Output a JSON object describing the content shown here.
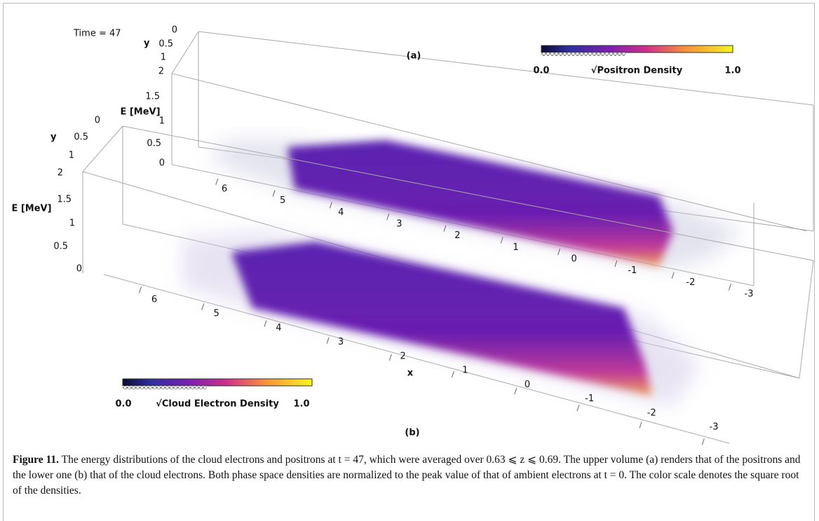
{
  "time_label": "Time = 47",
  "panels": [
    {
      "label": "(a)",
      "colorbar": {
        "min": "0.0",
        "title": "√Positron Density",
        "max": "1.0"
      },
      "y_axis": {
        "label": "y",
        "ticks": [
          "0",
          "0.5",
          "1",
          "2"
        ]
      },
      "e_axis": {
        "label": "E [MeV]",
        "ticks": [
          "1.5",
          "1",
          "0.5",
          "0"
        ]
      },
      "x_axis": {
        "ticks": [
          "6",
          "5",
          "4",
          "3",
          "2",
          "1",
          "0",
          "-1",
          "-2",
          "-3"
        ]
      }
    },
    {
      "label": "(b)",
      "colorbar": {
        "min": "0.0",
        "title": "√Cloud Electron Density",
        "max": "1.0"
      },
      "y_axis": {
        "label": "y",
        "ticks": [
          "0",
          "0.5",
          "1",
          "2"
        ]
      },
      "e_axis": {
        "label": "E [MeV]",
        "ticks": [
          "1.5",
          "1",
          "0.5",
          "0"
        ]
      },
      "x_axis": {
        "label": "x",
        "ticks": [
          "6",
          "5",
          "4",
          "3",
          "2",
          "1",
          "0",
          "-1",
          "-2",
          "-3"
        ]
      }
    }
  ],
  "caption": {
    "label": "Figure 11.",
    "text": "The energy distributions of the cloud electrons and positrons at t = 47, which were averaged over 0.63 ⩽ z ⩽ 0.69. The upper volume (a) renders that of the positrons and the lower one (b) that of the cloud electrons. Both phase space densities are normalized to the peak value of that of ambient electrons at t = 0. The color scale denotes the square root of the densities."
  }
}
